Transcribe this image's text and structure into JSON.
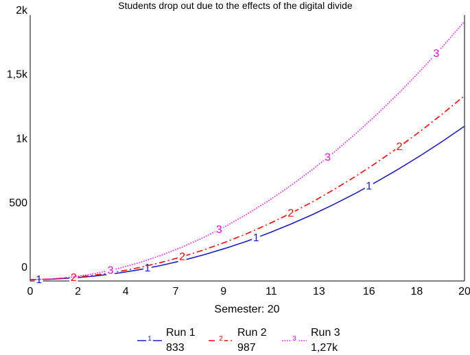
{
  "chart_data": {
    "type": "line",
    "title": "Students drop out due to the effects of the digital divide",
    "xlabel": "Semester: 20",
    "ylabel": "",
    "xlim": [
      0,
      20
    ],
    "ylim": [
      -70,
      2000
    ],
    "x_ticks": [
      0,
      2.2,
      4.4,
      6.7,
      8.9,
      11.1,
      13.3,
      15.6,
      17.8,
      20
    ],
    "x_tick_labels": [
      "0",
      "2",
      "4",
      "7",
      "9",
      "11",
      "13",
      "16",
      "18",
      "20"
    ],
    "y_ticks": [
      0,
      500,
      1000,
      1500,
      2000
    ],
    "y_tick_labels": [
      "0",
      "500",
      "1k",
      "1,5k",
      "2k"
    ],
    "grid": false,
    "legend_position": "bottom",
    "x": [
      0,
      1,
      2,
      3,
      4,
      5,
      6,
      7,
      8,
      9,
      10,
      11,
      12,
      13,
      14,
      15,
      16,
      17,
      18,
      19,
      20
    ],
    "series": [
      {
        "name": "Run 1",
        "marker_label": "1",
        "legend_value": "833",
        "color": "#1a1acc",
        "dash": "solid",
        "marker_x": [
          0.4,
          5.4,
          10.4,
          15.6
        ],
        "values": [
          -60,
          -56,
          -46,
          -31,
          -10,
          17,
          50,
          89,
          134,
          185,
          241,
          304,
          373,
          447,
          528,
          614,
          707,
          805,
          909,
          1019,
          1135
        ]
      },
      {
        "name": "Run 2",
        "marker_label": "2",
        "legend_value": "987",
        "color": "#ff0000",
        "dash": "dashdot",
        "marker_x": [
          2.0,
          7.0,
          12.0,
          17.0
        ],
        "values": [
          -60,
          -55,
          -43,
          -24,
          1,
          33,
          73,
          119,
          172,
          233,
          300,
          375,
          457,
          546,
          643,
          746,
          857,
          975,
          1100,
          1233,
          1372
        ]
      },
      {
        "name": "Run 3",
        "marker_label": "3",
        "legend_value": "1,27k",
        "color": "#ee00ee",
        "dash": "dotted",
        "marker_x": [
          3.7,
          8.7,
          13.7,
          18.7
        ],
        "values": [
          -60,
          -54,
          -38,
          -12,
          25,
          71,
          128,
          194,
          270,
          356,
          452,
          557,
          673,
          798,
          933,
          1078,
          1233,
          1397,
          1572,
          1756,
          1950
        ]
      }
    ]
  }
}
